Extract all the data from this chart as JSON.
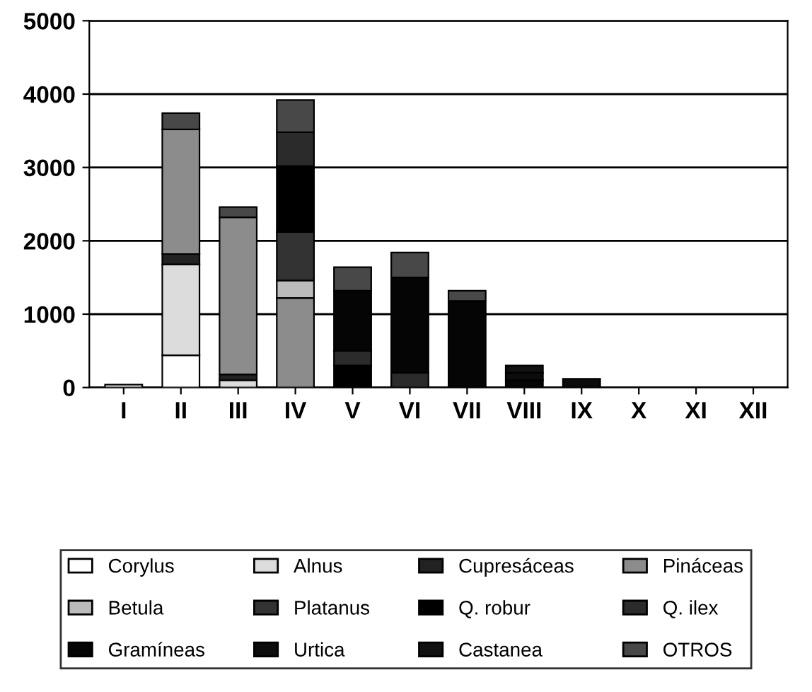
{
  "chart_data": {
    "type": "bar",
    "stacked": true,
    "categories": [
      "I",
      "II",
      "III",
      "IV",
      "V",
      "VI",
      "VII",
      "VIII",
      "IX",
      "X",
      "XI",
      "XII"
    ],
    "ylim": [
      0,
      5000
    ],
    "yticks": [
      0,
      1000,
      2000,
      3000,
      4000,
      5000
    ],
    "grid": "y",
    "legend": "bottom",
    "series": [
      {
        "name": "Corylus",
        "color": "#ffffff",
        "values": [
          40,
          440,
          0,
          0,
          0,
          0,
          0,
          0,
          0,
          0,
          0,
          0
        ]
      },
      {
        "name": "Alnus",
        "color": "#dcdcdc",
        "values": [
          0,
          1240,
          100,
          0,
          0,
          0,
          0,
          0,
          0,
          0,
          0,
          0
        ]
      },
      {
        "name": "Cupresáceas",
        "color": "#222222",
        "values": [
          0,
          140,
          80,
          0,
          0,
          0,
          0,
          0,
          0,
          0,
          0,
          0
        ]
      },
      {
        "name": "Pináceas",
        "color": "#8c8c8c",
        "values": [
          0,
          1700,
          2140,
          1220,
          0,
          0,
          0,
          0,
          0,
          0,
          0,
          0
        ]
      },
      {
        "name": "Betula",
        "color": "#bbbbbb",
        "values": [
          0,
          0,
          0,
          240,
          0,
          0,
          0,
          0,
          0,
          0,
          0,
          0
        ]
      },
      {
        "name": "Platanus",
        "color": "#333333",
        "values": [
          0,
          0,
          0,
          660,
          0,
          0,
          0,
          0,
          0,
          0,
          0,
          0
        ]
      },
      {
        "name": "Q. robur",
        "color": "#000000",
        "values": [
          0,
          0,
          0,
          900,
          300,
          0,
          0,
          0,
          0,
          0,
          0,
          0
        ]
      },
      {
        "name": "Q. ilex",
        "color": "#2b2b2b",
        "values": [
          0,
          0,
          0,
          460,
          200,
          200,
          0,
          0,
          0,
          0,
          0,
          0
        ]
      },
      {
        "name": "Gramíneas",
        "color": "#050505",
        "values": [
          0,
          0,
          0,
          0,
          820,
          1300,
          1180,
          100,
          0,
          0,
          0,
          0
        ]
      },
      {
        "name": "Urtica",
        "color": "#0c0c0c",
        "values": [
          0,
          0,
          0,
          0,
          0,
          0,
          0,
          100,
          120,
          0,
          0,
          0
        ]
      },
      {
        "name": "Castanea",
        "color": "#111111",
        "values": [
          0,
          0,
          0,
          0,
          0,
          0,
          0,
          100,
          0,
          0,
          0,
          0
        ]
      },
      {
        "name": "OTROS",
        "color": "#484848",
        "values": [
          0,
          220,
          140,
          440,
          320,
          340,
          140,
          0,
          0,
          0,
          0,
          0
        ]
      }
    ]
  }
}
